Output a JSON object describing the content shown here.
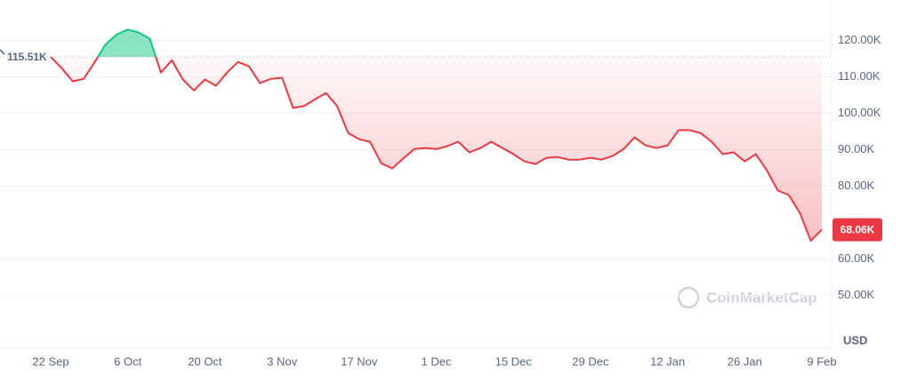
{
  "chart_data": {
    "type": "line",
    "categories": [
      "22 Sep",
      null,
      null,
      null,
      null,
      null,
      null,
      "6 Oct",
      null,
      null,
      null,
      null,
      null,
      null,
      "20 Oct",
      null,
      null,
      null,
      null,
      null,
      null,
      "3 Nov",
      null,
      null,
      null,
      null,
      null,
      null,
      "17 Nov",
      null,
      null,
      null,
      null,
      null,
      null,
      "1 Dec",
      null,
      null,
      null,
      null,
      null,
      null,
      "15 Dec",
      null,
      null,
      null,
      null,
      null,
      null,
      "29 Dec",
      null,
      null,
      null,
      null,
      null,
      null,
      "12 Jan",
      null,
      null,
      null,
      null,
      null,
      null,
      "26 Jan",
      null,
      null,
      null,
      null,
      null,
      null,
      "9 Feb"
    ],
    "values": [
      115510,
      112400,
      108800,
      109500,
      114100,
      119000,
      121700,
      123000,
      122200,
      120500,
      111200,
      114600,
      109300,
      106300,
      109300,
      107600,
      111200,
      114100,
      112900,
      108300,
      109500,
      109800,
      101500,
      102000,
      103900,
      105600,
      102000,
      94600,
      92900,
      92200,
      86300,
      84900,
      87600,
      90200,
      90500,
      90200,
      91000,
      92200,
      89300,
      90500,
      92200,
      90500,
      88800,
      86800,
      86100,
      87800,
      88000,
      87300,
      87300,
      87800,
      87300,
      88300,
      90200,
      93400,
      91200,
      90500,
      91200,
      95400,
      95400,
      94600,
      92200,
      88800,
      89300,
      86800,
      88800,
      84400,
      78800,
      77600,
      72700,
      65000,
      68060
    ],
    "up_color": "#16c784",
    "down_color": "#ea3943",
    "baseline": {
      "value": 115510,
      "label": "115.51K"
    },
    "last_price": {
      "value": 68060,
      "label": "68.06K"
    },
    "ylim": [
      36000,
      130400
    ],
    "yticks": [
      {
        "value": 50000,
        "label": "50.00K"
      },
      {
        "value": 60000,
        "label": "60.00K"
      },
      {
        "value": 80000,
        "label": "80.00K"
      },
      {
        "value": 90000,
        "label": "90.00K"
      },
      {
        "value": 100000,
        "label": "100.00K"
      },
      {
        "value": 110000,
        "label": "110.00K"
      },
      {
        "value": 120000,
        "label": "120.00K"
      }
    ],
    "grid": true,
    "currency": "USD",
    "watermark": "CoinMarketCap"
  }
}
